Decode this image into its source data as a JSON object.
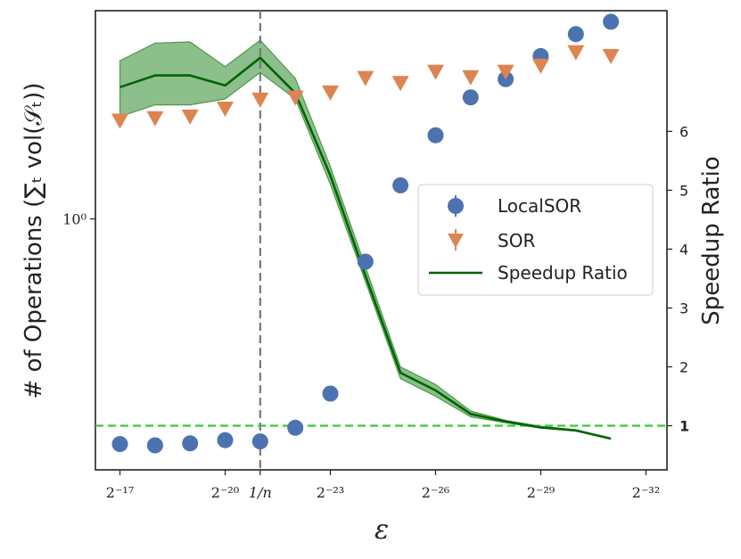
{
  "chart_data": {
    "type": "scatter+line",
    "title": "",
    "xlabel": "ε",
    "ylabel": "# of Operations (∑ₜ vol(𝒮ₜ))",
    "y2label": "Speedup Ratio",
    "x_tick_labels": [
      "2⁻¹⁷",
      "2⁻²⁰",
      "1/n",
      "2⁻²³",
      "2⁻²⁶",
      "2⁻²⁹",
      "2⁻³²"
    ],
    "x_tick_positions": [
      -17,
      -20,
      -21,
      -23,
      -26,
      -29,
      -32
    ],
    "xlim": [
      -16.3,
      -32.6
    ],
    "y_tick_label": "10⁰",
    "y_tick_value": 1.0,
    "ylim_log": [
      0.2,
      3.8
    ],
    "y2_tick_labels": [
      "1",
      "2",
      "3",
      "4",
      "5",
      "6"
    ],
    "y2_ticks": [
      1,
      2,
      3,
      4,
      5,
      6
    ],
    "y2lim": [
      0.25,
      8.05
    ],
    "vline": {
      "x": -21,
      "label": "1/n"
    },
    "hline": {
      "y2": 1,
      "label": "1"
    },
    "series": [
      {
        "name": "LocalSOR",
        "kind": "scatter",
        "marker": "circle",
        "color": "#4c72b0",
        "x": [
          -17,
          -18,
          -19,
          -20,
          -21,
          -22,
          -23,
          -24,
          -25,
          -26,
          -27,
          -28,
          -29,
          -30,
          -31
        ],
        "y": [
          0.236,
          0.234,
          0.237,
          0.242,
          0.24,
          0.262,
          0.326,
          0.76,
          1.24,
          1.71,
          2.18,
          2.45,
          2.84,
          3.27,
          3.54
        ]
      },
      {
        "name": "SOR",
        "kind": "scatter",
        "marker": "triangle-down",
        "color": "#dd8452",
        "x": [
          -17,
          -18,
          -19,
          -20,
          -21,
          -22,
          -23,
          -24,
          -25,
          -26,
          -27,
          -28,
          -29,
          -30,
          -31
        ],
        "y": [
          1.87,
          1.9,
          1.92,
          2.02,
          2.14,
          2.17,
          2.24,
          2.46,
          2.38,
          2.56,
          2.47,
          2.56,
          2.66,
          2.9,
          2.83
        ]
      },
      {
        "name": "Speedup Ratio",
        "kind": "line",
        "axis": "right",
        "color": "#006400",
        "x": [
          -17,
          -18,
          -19,
          -20,
          -21,
          -22,
          -23,
          -24,
          -25,
          -26,
          -27,
          -28,
          -29,
          -30,
          -31
        ],
        "y": [
          6.75,
          6.95,
          6.95,
          6.78,
          7.25,
          6.65,
          5.25,
          3.55,
          1.9,
          1.6,
          1.2,
          1.07,
          0.97,
          0.92,
          0.78
        ],
        "band_low": [
          6.25,
          6.45,
          6.45,
          6.55,
          7.0,
          6.55,
          5.1,
          3.45,
          1.8,
          1.5,
          1.15,
          1.05,
          0.96,
          0.92,
          0.78
        ],
        "band_high": [
          7.2,
          7.5,
          7.52,
          7.1,
          7.55,
          6.9,
          5.4,
          3.7,
          2.0,
          1.7,
          1.25,
          1.09,
          0.99,
          0.93,
          0.78
        ],
        "band_color": "#2e8b2e"
      }
    ],
    "legend": {
      "position": "center-right",
      "entries": [
        "LocalSOR",
        "SOR",
        "Speedup Ratio"
      ]
    }
  }
}
